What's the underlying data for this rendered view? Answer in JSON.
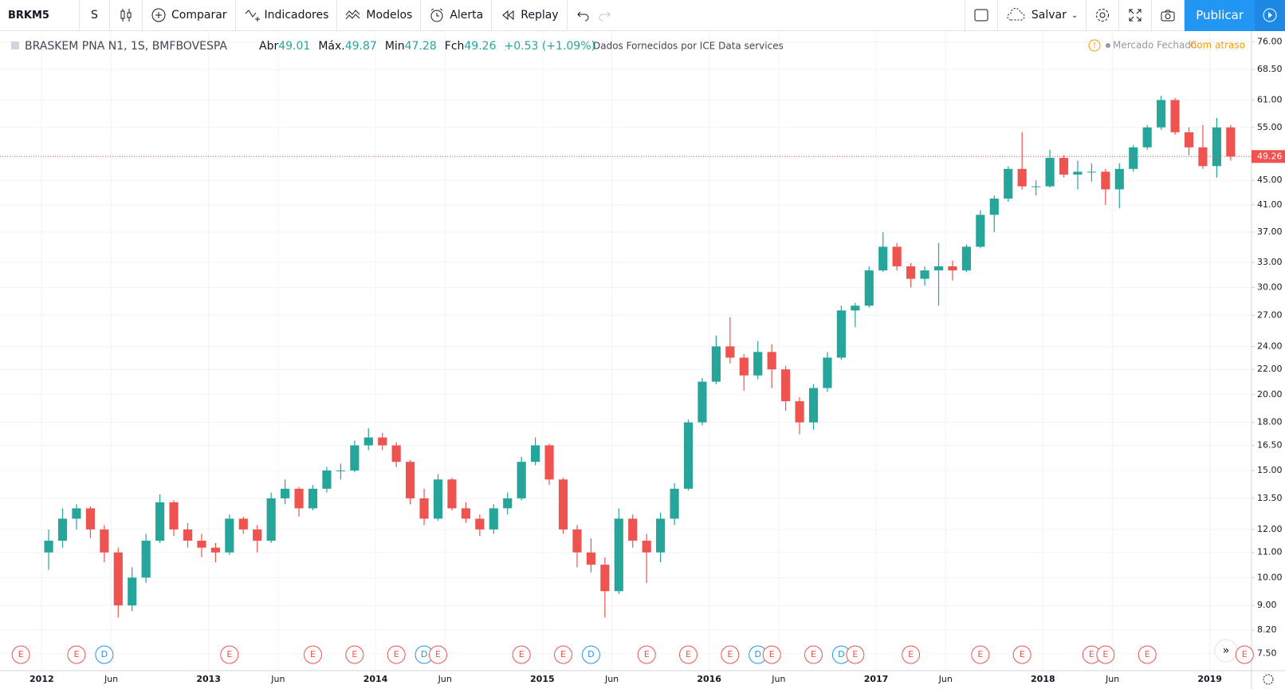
{
  "toolbar": {
    "symbol": "BRKM5",
    "interval": "S",
    "compare": "Comparar",
    "indicators": "Indicadores",
    "templates": "Modelos",
    "alert": "Alerta",
    "replay": "Replay",
    "save": "Salvar",
    "publish": "Publicar"
  },
  "legend": {
    "name": "BRASKEM PNA N1, 1S, BMFBOVESPA",
    "open_label": "Abr",
    "open": "49.01",
    "high_label": "Máx.",
    "high": "49.87",
    "low_label": "Min",
    "low": "47.28",
    "close_label": "Fch",
    "close": "49.26",
    "change": "+0.53 (+1.09%)",
    "source": "Dados Fornecidos por ICE Data services",
    "market": "Mercado Fechado",
    "delay": "Com atraso"
  },
  "chart_data": {
    "type": "candlestick",
    "log_scale": true,
    "grid": true,
    "up_color": "#26a69a",
    "down_color": "#ef5350",
    "xlim": [
      "2011-10",
      "2019-04"
    ],
    "xticks": [
      {
        "value": "2012-01",
        "label": "2012"
      },
      {
        "value": "2012-06",
        "label": "Jun"
      },
      {
        "value": "2013-01",
        "label": "2013"
      },
      {
        "value": "2013-06",
        "label": "Jun"
      },
      {
        "value": "2014-01",
        "label": "2014"
      },
      {
        "value": "2014-06",
        "label": "Jun"
      },
      {
        "value": "2015-01",
        "label": "2015"
      },
      {
        "value": "2015-06",
        "label": "Jun"
      },
      {
        "value": "2016-01",
        "label": "2016"
      },
      {
        "value": "2016-06",
        "label": "Jun"
      },
      {
        "value": "2017-01",
        "label": "2017"
      },
      {
        "value": "2017-06",
        "label": "Jun"
      },
      {
        "value": "2018-01",
        "label": "2018"
      },
      {
        "value": "2018-06",
        "label": "Jun"
      },
      {
        "value": "2019-01",
        "label": "2019"
      }
    ],
    "ylim": [
      7.03,
      79.2
    ],
    "yticks": [
      {
        "value": 7.5,
        "label": "7.50"
      },
      {
        "value": 8.2,
        "label": "8.20"
      },
      {
        "value": 9,
        "label": "9.00"
      },
      {
        "value": 10,
        "label": "10.00"
      },
      {
        "value": 11,
        "label": "11.00"
      },
      {
        "value": 12,
        "label": "12.00"
      },
      {
        "value": 13.5,
        "label": "13.50"
      },
      {
        "value": 15,
        "label": "15.00"
      },
      {
        "value": 16.5,
        "label": "16.50"
      },
      {
        "value": 18,
        "label": "18.00"
      },
      {
        "value": 20,
        "label": "20.00"
      },
      {
        "value": 22,
        "label": "22.00"
      },
      {
        "value": 24,
        "label": "24.00"
      },
      {
        "value": 27,
        "label": "27.00"
      },
      {
        "value": 30,
        "label": "30.00"
      },
      {
        "value": 33,
        "label": "33.00"
      },
      {
        "value": 37,
        "label": "37.00"
      },
      {
        "value": 41,
        "label": "41.00"
      },
      {
        "value": 45,
        "label": "45.00"
      },
      {
        "value": 55,
        "label": "55.00"
      },
      {
        "value": 61,
        "label": "61.00"
      },
      {
        "value": 68.5,
        "label": "68.50"
      },
      {
        "value": 76,
        "label": "76.00"
      }
    ],
    "last_price": 49.26,
    "x": [
      "2012-01",
      "2012-02",
      "2012-03",
      "2012-04",
      "2012-05",
      "2012-06",
      "2012-07",
      "2012-08",
      "2012-09",
      "2012-10",
      "2012-11",
      "2012-12",
      "2013-01",
      "2013-02",
      "2013-03",
      "2013-04",
      "2013-05",
      "2013-06",
      "2013-07",
      "2013-08",
      "2013-09",
      "2013-10",
      "2013-11",
      "2013-12",
      "2014-01",
      "2014-02",
      "2014-03",
      "2014-04",
      "2014-05",
      "2014-06",
      "2014-07",
      "2014-08",
      "2014-09",
      "2014-10",
      "2014-11",
      "2014-12",
      "2015-01",
      "2015-02",
      "2015-03",
      "2015-04",
      "2015-05",
      "2015-06",
      "2015-07",
      "2015-08",
      "2015-09",
      "2015-10",
      "2015-11",
      "2015-12",
      "2016-01",
      "2016-02",
      "2016-03",
      "2016-04",
      "2016-05",
      "2016-06",
      "2016-07",
      "2016-08",
      "2016-09",
      "2016-10",
      "2016-11",
      "2016-12",
      "2017-01",
      "2017-02",
      "2017-03",
      "2017-04",
      "2017-05",
      "2017-06",
      "2017-07",
      "2017-08",
      "2017-09",
      "2017-10",
      "2017-11",
      "2017-12",
      "2018-01",
      "2018-02",
      "2018-03",
      "2018-04",
      "2018-05",
      "2018-06",
      "2018-07",
      "2018-08",
      "2018-09",
      "2018-10",
      "2018-11",
      "2018-12",
      "2019-01",
      "2019-02"
    ],
    "ohlc": [
      [
        11.0,
        12.0,
        10.3,
        11.5
      ],
      [
        11.5,
        13.0,
        11.2,
        12.5
      ],
      [
        12.5,
        13.2,
        12.0,
        13.0
      ],
      [
        13.0,
        13.1,
        11.6,
        12.0
      ],
      [
        12.0,
        12.2,
        10.6,
        11.0
      ],
      [
        11.0,
        11.2,
        8.6,
        9.0
      ],
      [
        9.0,
        10.4,
        8.8,
        10.0
      ],
      [
        10.0,
        11.8,
        9.8,
        11.5
      ],
      [
        11.5,
        13.7,
        11.4,
        13.3
      ],
      [
        13.3,
        13.4,
        11.7,
        12.0
      ],
      [
        12.0,
        12.3,
        11.2,
        11.5
      ],
      [
        11.5,
        11.8,
        10.8,
        11.2
      ],
      [
        11.2,
        11.4,
        10.6,
        11.0
      ],
      [
        11.0,
        12.7,
        10.9,
        12.5
      ],
      [
        12.5,
        12.6,
        11.8,
        12.0
      ],
      [
        12.0,
        12.2,
        11.0,
        11.5
      ],
      [
        11.5,
        13.8,
        11.4,
        13.5
      ],
      [
        13.5,
        14.5,
        13.2,
        14.0
      ],
      [
        14.0,
        14.1,
        12.6,
        13.0
      ],
      [
        13.0,
        14.2,
        12.9,
        14.0
      ],
      [
        14.0,
        15.2,
        13.8,
        15.0
      ],
      [
        15.0,
        15.4,
        14.5,
        15.0
      ],
      [
        15.0,
        16.8,
        14.9,
        16.5
      ],
      [
        16.5,
        17.6,
        16.2,
        17.0
      ],
      [
        17.0,
        17.3,
        16.2,
        16.5
      ],
      [
        16.5,
        16.7,
        15.2,
        15.5
      ],
      [
        15.5,
        15.6,
        13.2,
        13.5
      ],
      [
        13.5,
        14.0,
        12.2,
        12.5
      ],
      [
        12.5,
        14.8,
        12.4,
        14.5
      ],
      [
        14.5,
        14.6,
        12.9,
        13.0
      ],
      [
        13.0,
        13.3,
        12.3,
        12.5
      ],
      [
        12.5,
        12.7,
        11.7,
        12.0
      ],
      [
        12.0,
        13.2,
        11.8,
        13.0
      ],
      [
        13.0,
        13.8,
        12.7,
        13.5
      ],
      [
        13.5,
        15.8,
        13.4,
        15.5
      ],
      [
        15.5,
        17.0,
        15.3,
        16.5
      ],
      [
        16.5,
        16.6,
        14.2,
        14.5
      ],
      [
        14.5,
        14.6,
        11.8,
        12.0
      ],
      [
        12.0,
        12.2,
        10.4,
        11.0
      ],
      [
        11.0,
        11.6,
        10.2,
        10.5
      ],
      [
        10.5,
        10.8,
        8.6,
        9.5
      ],
      [
        9.5,
        13.0,
        9.4,
        12.5
      ],
      [
        12.5,
        12.7,
        11.2,
        11.5
      ],
      [
        11.5,
        11.8,
        9.8,
        11.0
      ],
      [
        11.0,
        12.8,
        10.6,
        12.5
      ],
      [
        12.5,
        14.3,
        12.2,
        14.0
      ],
      [
        14.0,
        18.2,
        13.9,
        18.0
      ],
      [
        18.0,
        21.3,
        17.8,
        21.0
      ],
      [
        21.0,
        25.0,
        20.8,
        24.0
      ],
      [
        24.0,
        26.8,
        22.5,
        23.0
      ],
      [
        23.0,
        23.3,
        20.3,
        21.5
      ],
      [
        21.5,
        24.5,
        21.2,
        23.5
      ],
      [
        23.5,
        24.2,
        20.5,
        22.0
      ],
      [
        22.0,
        22.3,
        18.8,
        19.5
      ],
      [
        19.5,
        19.8,
        17.2,
        18.0
      ],
      [
        18.0,
        20.8,
        17.5,
        20.5
      ],
      [
        20.5,
        23.5,
        20.2,
        23.0
      ],
      [
        23.0,
        28.0,
        22.8,
        27.5
      ],
      [
        27.5,
        28.3,
        25.8,
        28.0
      ],
      [
        28.0,
        32.5,
        27.8,
        32.0
      ],
      [
        32.0,
        37.0,
        31.8,
        35.0
      ],
      [
        35.0,
        35.5,
        32.0,
        32.5
      ],
      [
        32.5,
        32.9,
        30.0,
        31.0
      ],
      [
        31.0,
        32.5,
        30.2,
        32.0
      ],
      [
        32.0,
        35.5,
        28.0,
        32.5
      ],
      [
        32.5,
        33.2,
        30.8,
        32.0
      ],
      [
        32.0,
        35.3,
        31.8,
        35.0
      ],
      [
        35.0,
        40.2,
        34.8,
        39.5
      ],
      [
        39.5,
        42.5,
        37.0,
        42.0
      ],
      [
        42.0,
        47.5,
        41.5,
        47.0
      ],
      [
        47.0,
        54.0,
        43.5,
        44.0
      ],
      [
        44.0,
        45.0,
        42.5,
        44.0
      ],
      [
        44.0,
        50.5,
        43.8,
        49.0
      ],
      [
        49.0,
        49.5,
        45.5,
        46.0
      ],
      [
        46.0,
        48.5,
        43.5,
        46.5
      ],
      [
        46.5,
        48.0,
        44.8,
        46.5
      ],
      [
        46.5,
        47.0,
        41.0,
        43.5
      ],
      [
        43.5,
        48.0,
        40.5,
        47.0
      ],
      [
        47.0,
        51.5,
        46.5,
        51.0
      ],
      [
        51.0,
        55.5,
        50.5,
        55.0
      ],
      [
        55.0,
        62.0,
        54.5,
        61.0
      ],
      [
        61.0,
        61.5,
        53.5,
        54.0
      ],
      [
        54.0,
        55.0,
        49.5,
        51.0
      ],
      [
        51.0,
        55.5,
        47.0,
        47.5
      ],
      [
        47.5,
        57.0,
        45.5,
        55.0
      ],
      [
        55.0,
        55.5,
        48.5,
        49.26
      ]
    ],
    "events": [
      {
        "x": "2011-11",
        "label": "E"
      },
      {
        "x": "2012-03",
        "label": "E"
      },
      {
        "x": "2012-05",
        "label": "D"
      },
      {
        "x": "2013-02",
        "label": "E"
      },
      {
        "x": "2013-08",
        "label": "E"
      },
      {
        "x": "2013-11",
        "label": "E"
      },
      {
        "x": "2014-02",
        "label": "E"
      },
      {
        "x": "2014-04",
        "label": "D"
      },
      {
        "x": "2014-05",
        "label": "E"
      },
      {
        "x": "2014-11",
        "label": "E"
      },
      {
        "x": "2015-02",
        "label": "E"
      },
      {
        "x": "2015-04",
        "label": "D"
      },
      {
        "x": "2015-08",
        "label": "E"
      },
      {
        "x": "2015-11",
        "label": "E"
      },
      {
        "x": "2016-02",
        "label": "E"
      },
      {
        "x": "2016-04",
        "label": "D"
      },
      {
        "x": "2016-05",
        "label": "E"
      },
      {
        "x": "2016-08",
        "label": "E"
      },
      {
        "x": "2016-10",
        "label": "D"
      },
      {
        "x": "2016-11",
        "label": "E"
      },
      {
        "x": "2017-03",
        "label": "E"
      },
      {
        "x": "2017-08",
        "label": "E"
      },
      {
        "x": "2017-11",
        "label": "E"
      },
      {
        "x": "2018-04",
        "label": "E"
      },
      {
        "x": "2018-05",
        "label": "E"
      },
      {
        "x": "2018-08",
        "label": "E"
      },
      {
        "x": "2019-03",
        "label": "E"
      }
    ]
  }
}
